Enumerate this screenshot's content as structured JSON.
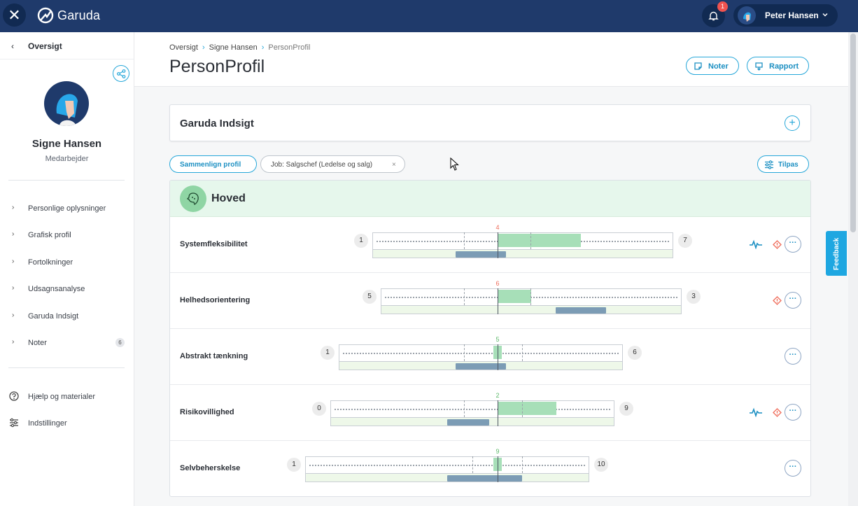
{
  "app": {
    "name": "Garuda"
  },
  "topbar": {
    "notification_count": "1",
    "user_name": "Peter Hansen"
  },
  "sidebar": {
    "back_label": "Oversigt",
    "profile": {
      "name": "Signe Hansen",
      "role": "Medarbejder"
    },
    "nav": [
      {
        "label": "Personlige oplysninger"
      },
      {
        "label": "Grafisk profil"
      },
      {
        "label": "Fortolkninger"
      },
      {
        "label": "Udsagnsanalyse"
      },
      {
        "label": "Garuda Indsigt"
      },
      {
        "label": "Noter",
        "count": "6"
      }
    ],
    "footer": [
      {
        "label": "Hjælp og materialer",
        "icon": "help-icon"
      },
      {
        "label": "Indstillinger",
        "icon": "sliders-icon"
      }
    ]
  },
  "header": {
    "breadcrumb": [
      "Oversigt",
      "Signe Hansen",
      "PersonProfil"
    ],
    "title": "PersonProfil",
    "notes_button": "Noter",
    "report_button": "Rapport"
  },
  "insight": {
    "title": "Garuda Indsigt"
  },
  "filters": {
    "compare_button": "Sammenlign profil",
    "job_chip": "Job: Salgschef (Ledelse og salg)",
    "customize_button": "Tilpas"
  },
  "section": {
    "title": "Hoved",
    "dimensions": [
      {
        "label": "Systemfleksibilitet",
        "left_value": "1",
        "right_value": "7",
        "score": "4",
        "score_color": "#ef6c5a",
        "has_pulse": true,
        "has_warning": true
      },
      {
        "label": "Helhedsorientering",
        "left_value": "5",
        "right_value": "3",
        "score": "6",
        "score_color": "#ef6c5a",
        "has_pulse": false,
        "has_warning": true
      },
      {
        "label": "Abstrakt tænkning",
        "left_value": "1",
        "right_value": "6",
        "score": "5",
        "score_color": "#5cb86a",
        "has_pulse": false,
        "has_warning": false
      },
      {
        "label": "Risikovillighed",
        "left_value": "0",
        "right_value": "9",
        "score": "2",
        "score_color": "#5cb86a",
        "has_pulse": true,
        "has_warning": true
      },
      {
        "label": "Selvbeherskelse",
        "left_value": "1",
        "right_value": "10",
        "score": "9",
        "score_color": "#5cb86a",
        "has_pulse": false,
        "has_warning": false
      }
    ]
  },
  "feedback": {
    "label": "Feedback"
  },
  "colors": {
    "topbar": "#1f3a6b",
    "accent": "#26a7d9",
    "section_bg": "#e6f7ec"
  }
}
